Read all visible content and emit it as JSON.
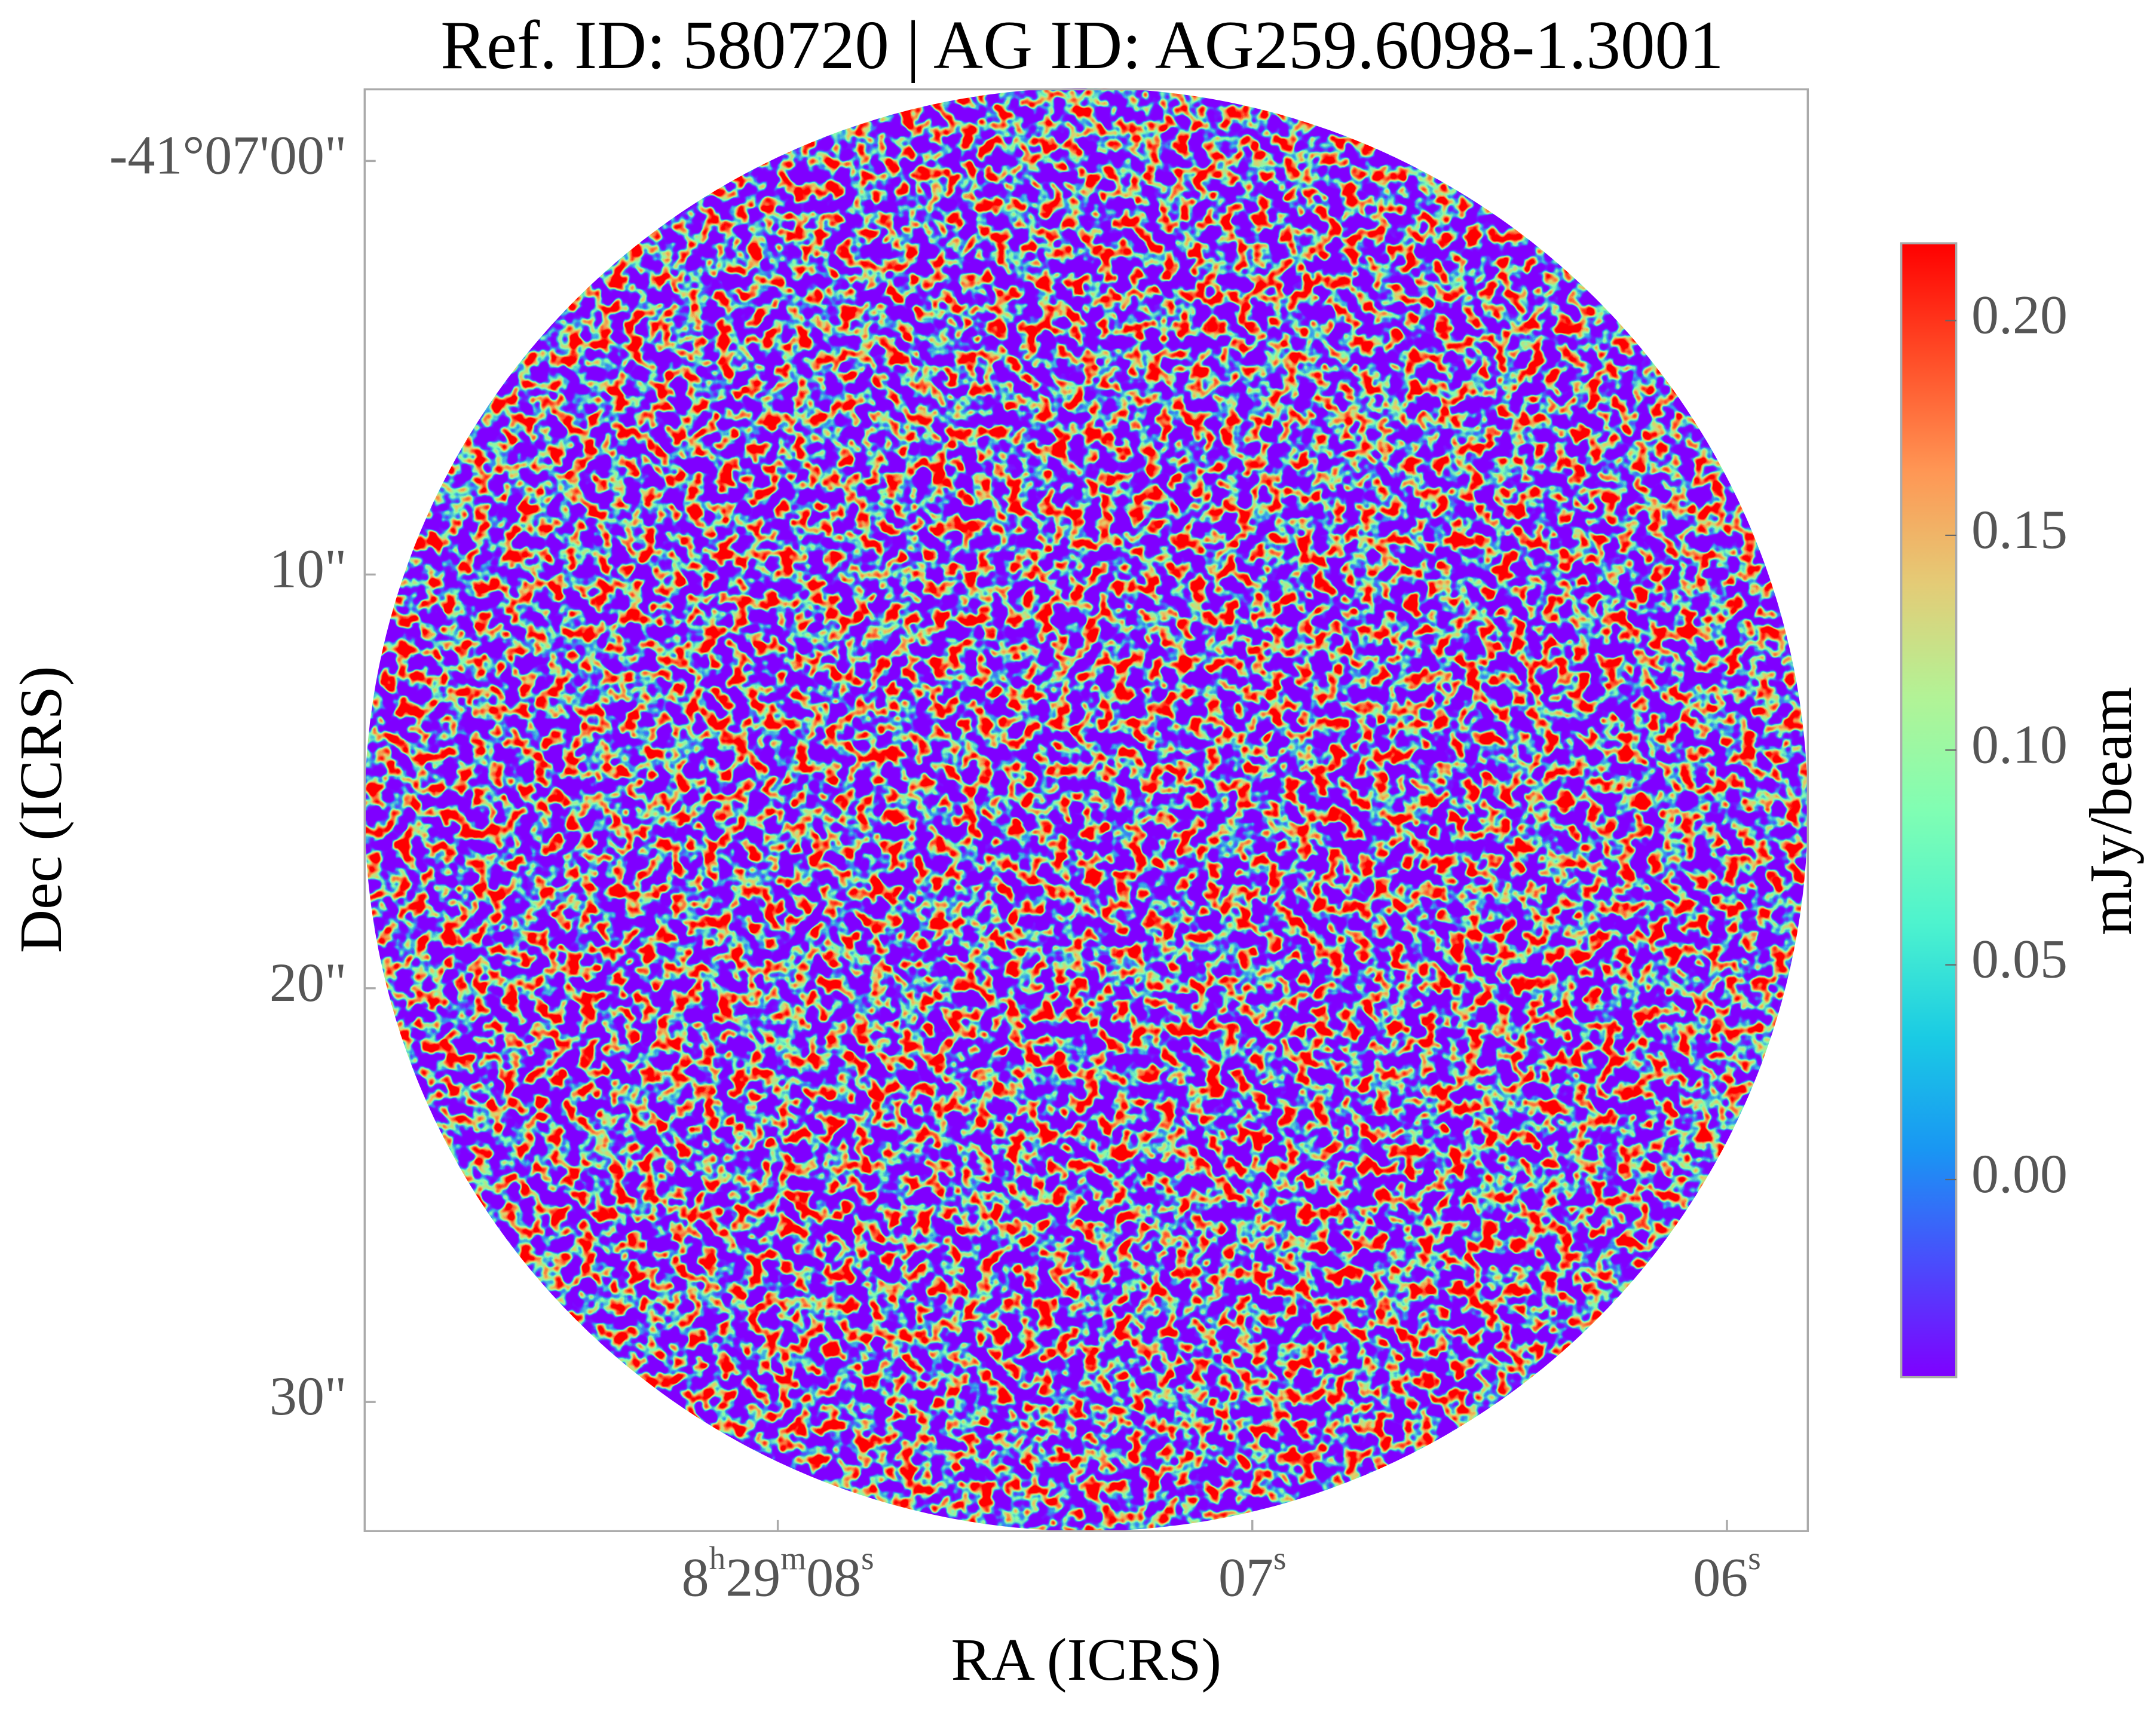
{
  "chart_data": {
    "type": "image",
    "title": "Ref. ID: 580720 | AG ID: AG259.6098-1.3001",
    "xlabel": "RA (ICRS)",
    "ylabel": "Dec (ICRS)",
    "xlim": [
      127.28696,
      127.27429
    ],
    "ylim": [
      -41.125867,
      -41.116186
    ],
    "xticks": [
      {
        "value": 127.283333,
        "label": [
          "8",
          "h",
          "29",
          "m",
          "08",
          "s"
        ]
      },
      {
        "value": 127.279167,
        "label": [
          "07",
          "s"
        ]
      },
      {
        "value": 127.275,
        "label": [
          "06",
          "s"
        ]
      }
    ],
    "yticks": [
      {
        "value": -41.116667,
        "label": "-41°07'00\""
      },
      {
        "value": -41.119444,
        "label": "10\""
      },
      {
        "value": -41.122222,
        "label": "20\""
      },
      {
        "value": -41.125,
        "label": "30\""
      }
    ],
    "colorbar": {
      "label": "mJy/beam",
      "colormap": "rainbow",
      "clim": [
        -0.046,
        0.218
      ],
      "ticks": [
        {
          "value": 0,
          "label": "0.00"
        },
        {
          "value": 0.05,
          "label": "0.05"
        },
        {
          "value": 0.1,
          "label": "0.10"
        },
        {
          "value": 0.15,
          "label": "0.15"
        },
        {
          "value": 0.2,
          "label": "0.20"
        }
      ]
    }
  }
}
